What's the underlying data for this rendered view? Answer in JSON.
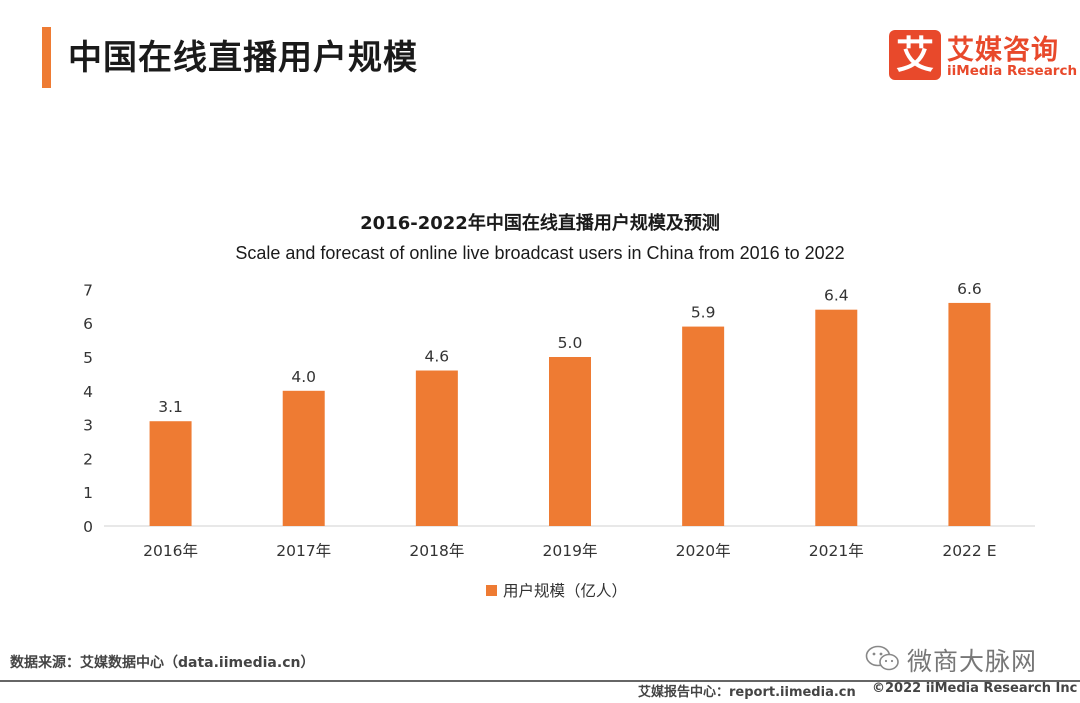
{
  "page": {
    "title": "中国在线直播用户规模",
    "logo_cn": "艾媒咨询",
    "logo_en": "iiMedia Research",
    "logo_glyph": "艾",
    "source": "数据来源：艾媒数据中心（data.iimedia.cn）",
    "footer_report": "艾媒报告中心：report.iimedia.cn",
    "footer_copyright": "©2022  iiMedia Research  Inc",
    "watermark": "微商大脉网",
    "accent_color": "#ee7b33",
    "brand_color": "#e8492b"
  },
  "chart_data": {
    "type": "bar",
    "title": "2016-2022年中国在线直播用户规模及预测",
    "subtitle": "Scale and forecast of online live broadcast users in China from 2016 to 2022",
    "categories": [
      "2016年",
      "2017年",
      "2018年",
      "2019年",
      "2020年",
      "2021年",
      "2022 E"
    ],
    "series": [
      {
        "name": "用户规模（亿人）",
        "values": [
          3.1,
          4.0,
          4.6,
          5.0,
          5.9,
          6.4,
          6.6
        ],
        "labels": [
          "3.1",
          "4.0",
          "4.6",
          "5.0",
          "5.9",
          "6.4",
          "6.6"
        ],
        "color": "#ee7b33"
      }
    ],
    "ylim": [
      0,
      7
    ],
    "yticks": [
      "0",
      "1",
      "2",
      "3",
      "4",
      "5",
      "6",
      "7"
    ],
    "xlabel": "",
    "ylabel": "",
    "grid": false,
    "legend_position": "bottom"
  }
}
